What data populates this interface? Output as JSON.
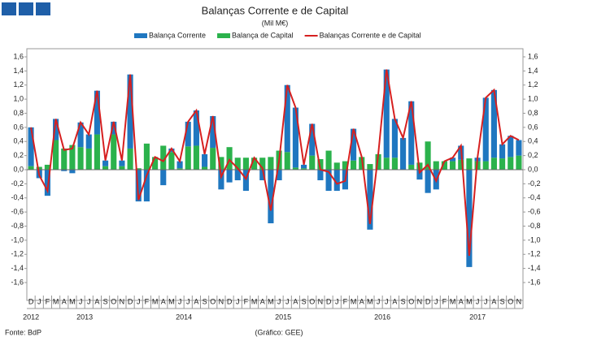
{
  "chart_data": {
    "type": "bar_line",
    "title": "Balanças Corrente e de Capital",
    "subtitle": "(Mil M€)",
    "source": "Fonte: BdP",
    "credit": "(Gráfico: GEE)",
    "categories": [
      "D",
      "J",
      "F",
      "M",
      "A",
      "M",
      "J",
      "J",
      "A",
      "S",
      "O",
      "N",
      "D",
      "J",
      "F",
      "M",
      "A",
      "M",
      "J",
      "J",
      "A",
      "S",
      "O",
      "N",
      "D",
      "J",
      "F",
      "M",
      "A",
      "M",
      "J",
      "J",
      "A",
      "S",
      "O",
      "N",
      "D",
      "J",
      "F",
      "M",
      "A",
      "M",
      "J",
      "J",
      "A",
      "S",
      "O",
      "N",
      "D",
      "J",
      "F",
      "M",
      "A",
      "M",
      "J",
      "J",
      "A",
      "S",
      "O",
      "N"
    ],
    "years": [
      "2012",
      "2013",
      "2014",
      "2015",
      "2016",
      "2017"
    ],
    "series": [
      {
        "name": "Balança Corrente",
        "color": "#1f77c0",
        "kind": "bar",
        "values": [
          0.55,
          -0.12,
          -0.37,
          0.3,
          -0.02,
          -0.05,
          0.35,
          0.2,
          0.62,
          0.08,
          0.18,
          0.08,
          1.05,
          -0.45,
          -0.45,
          0.0,
          -0.22,
          0.05,
          0.1,
          0.35,
          0.5,
          0.18,
          0.45,
          -0.28,
          -0.18,
          -0.15,
          -0.3,
          0.0,
          -0.15,
          -0.76,
          -0.15,
          0.95,
          0.85,
          0.05,
          0.45,
          -0.15,
          -0.3,
          -0.3,
          -0.28,
          0.45,
          0.0,
          -0.85,
          0.0,
          1.25,
          0.55,
          0.45,
          0.9,
          -0.14,
          -0.33,
          -0.28,
          0.0,
          0.05,
          0.2,
          -1.38,
          0.05,
          0.9,
          0.96,
          0.2,
          0.3,
          0.22
        ]
      },
      {
        "name": "Balança de Capital",
        "color": "#2bb24c",
        "kind": "bar",
        "values": [
          0.05,
          0.04,
          0.07,
          0.42,
          0.3,
          0.35,
          0.32,
          0.3,
          0.5,
          0.05,
          0.5,
          0.05,
          0.3,
          0.02,
          0.37,
          0.18,
          0.34,
          0.25,
          0.02,
          0.33,
          0.34,
          0.04,
          0.31,
          0.18,
          0.32,
          0.17,
          0.17,
          0.17,
          0.17,
          0.18,
          0.27,
          0.25,
          0.03,
          0.02,
          0.2,
          0.15,
          0.27,
          0.1,
          0.12,
          0.13,
          0.18,
          0.08,
          0.22,
          0.17,
          0.17,
          0.0,
          0.07,
          0.1,
          0.4,
          0.12,
          0.12,
          0.12,
          0.14,
          0.16,
          0.12,
          0.12,
          0.17,
          0.16,
          0.18,
          0.2
        ]
      },
      {
        "name": "Balanças Corrente e de Capital",
        "color": "#d62020",
        "kind": "line",
        "values": [
          0.6,
          -0.08,
          -0.3,
          0.72,
          0.28,
          0.3,
          0.67,
          0.5,
          1.12,
          0.13,
          0.68,
          0.13,
          1.35,
          -0.43,
          -0.08,
          0.18,
          0.12,
          0.3,
          0.12,
          0.68,
          0.84,
          0.22,
          0.76,
          -0.1,
          0.14,
          0.02,
          -0.13,
          0.17,
          0.02,
          -0.58,
          0.12,
          1.2,
          0.88,
          0.07,
          0.65,
          0.0,
          -0.03,
          -0.2,
          -0.16,
          0.58,
          0.18,
          -0.77,
          0.22,
          1.42,
          0.72,
          0.45,
          0.97,
          -0.04,
          0.07,
          -0.16,
          0.12,
          0.17,
          0.34,
          -1.22,
          0.17,
          1.02,
          1.13,
          0.36,
          0.48,
          0.42
        ]
      }
    ],
    "ylim": [
      -1.6,
      1.6
    ],
    "yticks": [
      {
        "value": -1.6,
        "label": "-1,6"
      },
      {
        "value": -1.4,
        "label": "-1,4"
      },
      {
        "value": -1.2,
        "label": "-1,2"
      },
      {
        "value": -1.0,
        "label": "-1,0"
      },
      {
        "value": -0.8,
        "label": "-0,8"
      },
      {
        "value": -0.6,
        "label": "-0,6"
      },
      {
        "value": -0.4,
        "label": "-0,4"
      },
      {
        "value": -0.2,
        "label": "-0,2"
      },
      {
        "value": 0,
        "label": "0,0"
      },
      {
        "value": 0.2,
        "label": "0,2"
      },
      {
        "value": 0.4,
        "label": "0,4"
      },
      {
        "value": 0.6,
        "label": "0,6"
      },
      {
        "value": 0.8,
        "label": "0,8"
      },
      {
        "value": 1.0,
        "label": "1,0"
      },
      {
        "value": 1.2,
        "label": "1,2"
      },
      {
        "value": 1.4,
        "label": "1,4"
      },
      {
        "value": 1.6,
        "label": "1,6"
      }
    ],
    "y2lim": [
      -1.6,
      1.6
    ],
    "y2ticks": [
      {
        "value": -1.6,
        "label": "-1,6"
      },
      {
        "value": -1.4,
        "label": "-1,4"
      },
      {
        "value": -1.2,
        "label": "-1,2"
      },
      {
        "value": -1.0,
        "label": "-1,0"
      },
      {
        "value": -0.8,
        "label": "-0,8"
      },
      {
        "value": -0.6,
        "label": "-0,6"
      },
      {
        "value": -0.4,
        "label": "-0,4"
      },
      {
        "value": -0.2,
        "label": "-0,2"
      },
      {
        "value": 0,
        "label": "0,0"
      },
      {
        "value": 0.2,
        "label": "0,2"
      },
      {
        "value": 0.4,
        "label": "0,4"
      },
      {
        "value": 0.6,
        "label": "0,6"
      },
      {
        "value": 0.8,
        "label": "0,8"
      },
      {
        "value": 1.0,
        "label": "1,0"
      },
      {
        "value": 1.2,
        "label": "1,2"
      },
      {
        "value": 1.4,
        "label": "1,4"
      },
      {
        "value": 1.6,
        "label": "1,6"
      }
    ]
  }
}
